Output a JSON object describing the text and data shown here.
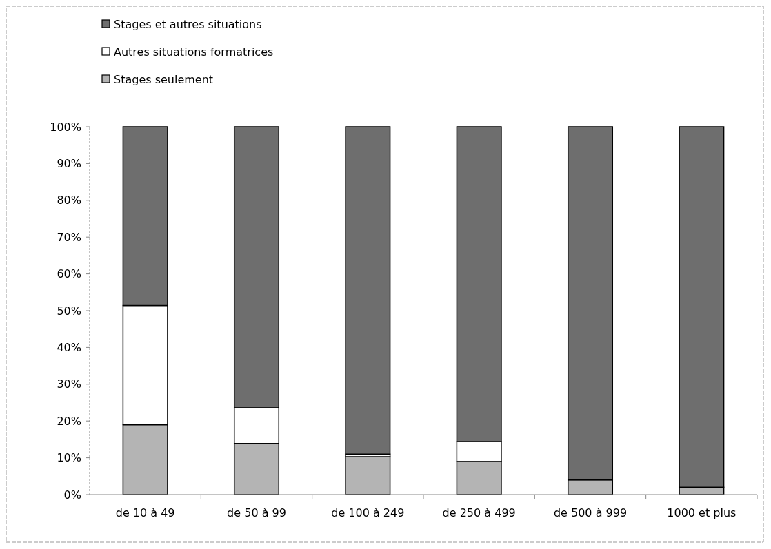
{
  "chart_data": {
    "type": "bar",
    "stacked": true,
    "categories": [
      "de 10 à 49",
      "de 50 à 99",
      "de 100 à 249",
      "de 250 à 499",
      "de 500 à 999",
      "1000 et plus"
    ],
    "series": [
      {
        "name": "Stages seulement",
        "color": "#b4b4b4",
        "values": [
          19,
          13.9,
          10.3,
          9,
          4,
          2
        ]
      },
      {
        "name": "Autres situations formatrices",
        "color": "#ffffff",
        "values": [
          32.4,
          9.7,
          0.7,
          5.4,
          0,
          0
        ]
      },
      {
        "name": "Stages et autres situations",
        "color": "#6e6e6e",
        "values": [
          48.6,
          76.4,
          89,
          85.6,
          96,
          98
        ]
      }
    ],
    "ylim": [
      0,
      100
    ],
    "yticks": [
      {
        "value": 0,
        "label": "0%"
      },
      {
        "value": 10,
        "label": "10%"
      },
      {
        "value": 20,
        "label": "20%"
      },
      {
        "value": 30,
        "label": "30%"
      },
      {
        "value": 40,
        "label": "40%"
      },
      {
        "value": 50,
        "label": "50%"
      },
      {
        "value": 60,
        "label": "60%"
      },
      {
        "value": 70,
        "label": "70%"
      },
      {
        "value": 80,
        "label": "80%"
      },
      {
        "value": 90,
        "label": "90%"
      },
      {
        "value": 100,
        "label": "100%"
      }
    ],
    "grid": false,
    "legend": "top left"
  }
}
